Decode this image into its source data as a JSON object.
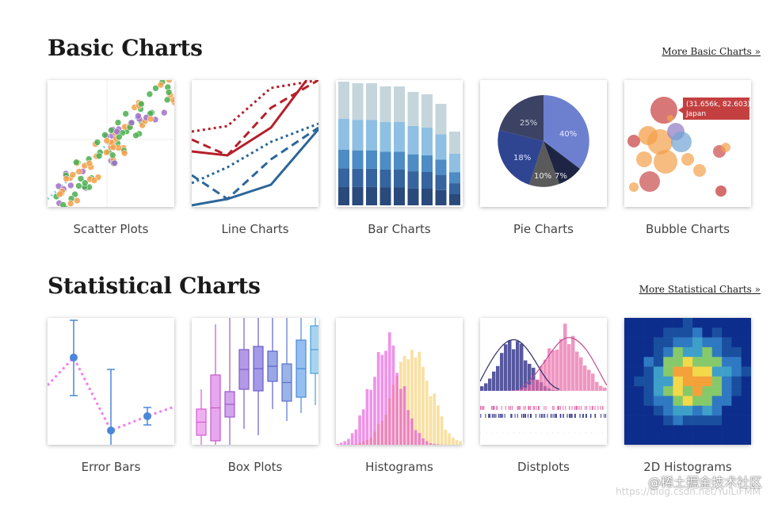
{
  "basic": {
    "title": "Basic Charts",
    "more_link": "More Basic Charts »",
    "cards": [
      {
        "label": "Scatter Plots"
      },
      {
        "label": "Line Charts"
      },
      {
        "label": "Bar Charts"
      },
      {
        "label": "Pie Charts"
      },
      {
        "label": "Bubble Charts"
      }
    ]
  },
  "statistical": {
    "title": "Statistical Charts",
    "more_link": "More Statistical Charts »",
    "cards": [
      {
        "label": "Error Bars"
      },
      {
        "label": "Box Plots"
      },
      {
        "label": "Histograms"
      },
      {
        "label": "Distplots"
      },
      {
        "label": "2D Histograms"
      }
    ]
  },
  "thumbnail_text": {
    "pie_slices": [
      "25%",
      "40%",
      "18%",
      "10%",
      "7%"
    ],
    "bubble_tooltip": [
      "(31.656k, 82.603)",
      "Japan"
    ]
  },
  "watermark": {
    "text": "@稀土掘金技术社区",
    "subtext": "https://blog.csdn.net/YuiLiFMM"
  },
  "colors": {
    "heading": "#1a1a1a",
    "label": "#444444",
    "line_red": "#b5202b",
    "line_blue": "#2b6699",
    "pie_main": "#6d7fcf",
    "tooltip": "#c44040"
  }
}
